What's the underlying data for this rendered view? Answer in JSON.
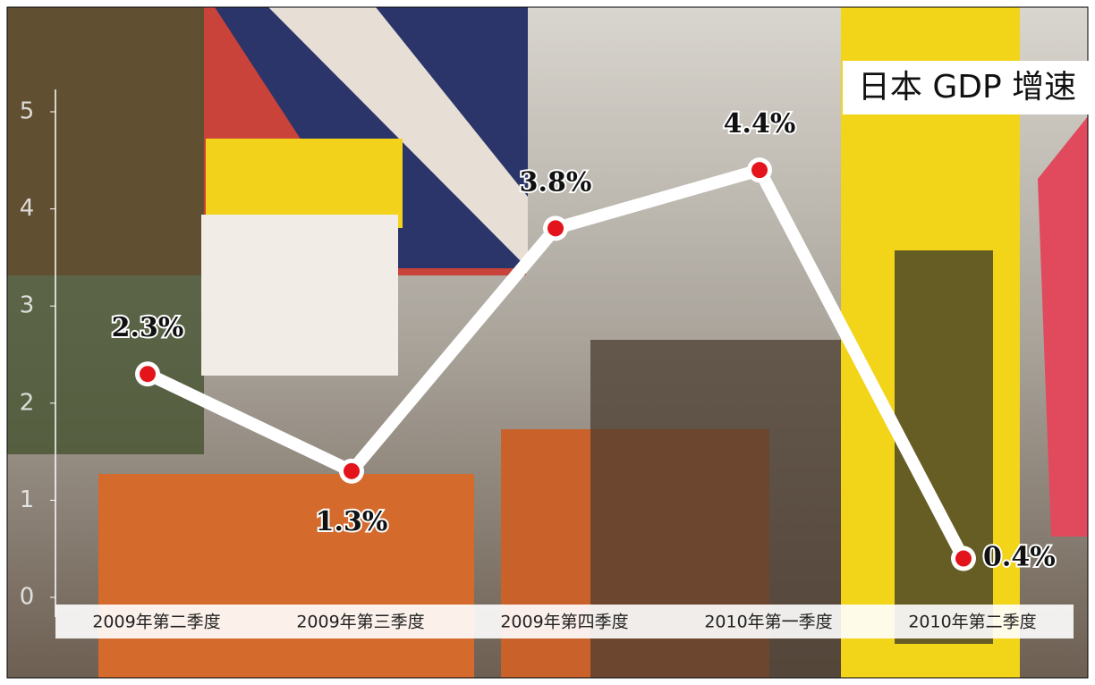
{
  "chart_data": {
    "type": "line",
    "title": "日本 GDP 增速",
    "categories": [
      "2009年第二季度",
      "2009年第三季度",
      "2009年第四季度",
      "2010年第一季度",
      "2010年第二季度"
    ],
    "values": [
      2.3,
      1.3,
      3.8,
      4.4,
      0.4
    ],
    "value_labels": [
      "2.3%",
      "1.3%",
      "3.8%",
      "4.4%",
      "0.4%"
    ],
    "color": "#ffffff",
    "marker_color": "#e3141b",
    "ylim": [
      0,
      5
    ],
    "yticks": [
      0,
      1,
      2,
      3,
      4,
      5
    ]
  }
}
